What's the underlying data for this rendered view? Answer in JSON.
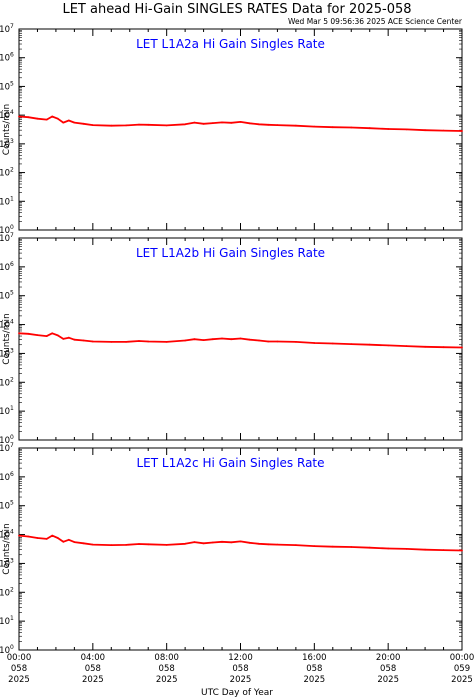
{
  "header": {
    "title": "LET ahead Hi-Gain SINGLES RATES Data for 2025-058",
    "timestamp": "Wed Mar  5 09:56:36 2025 ACE Science Center"
  },
  "colors": {
    "line": "#ff0000",
    "panel_title": "#0000ff",
    "axis": "#000000"
  },
  "chart_data": [
    {
      "type": "line",
      "title": "LET L1A2a Hi Gain Singles Rate",
      "ylabel": "Counts/min",
      "yscale": "log",
      "ylim": [
        1,
        10000000
      ],
      "xlim": [
        0,
        24
      ],
      "series": [
        {
          "x": [
            0,
            0.5,
            1,
            1.5,
            1.8,
            2.1,
            2.4,
            2.7,
            3,
            3.5,
            4,
            5,
            5.8,
            6.5,
            7,
            8,
            9,
            9.5,
            10,
            10.5,
            11,
            11.5,
            12,
            12.5,
            13,
            13.5,
            14,
            15,
            16,
            17,
            18,
            19,
            20,
            21,
            22,
            23,
            24
          ],
          "values": [
            9000,
            8500,
            7500,
            7000,
            9000,
            7500,
            5500,
            6500,
            5500,
            5000,
            4500,
            4300,
            4400,
            4700,
            4600,
            4400,
            4800,
            5500,
            5000,
            5300,
            5600,
            5400,
            5800,
            5200,
            4800,
            4600,
            4500,
            4300,
            4000,
            3800,
            3700,
            3500,
            3300,
            3200,
            3000,
            2900,
            2800
          ]
        }
      ]
    },
    {
      "type": "line",
      "title": "LET L1A2b Hi Gain Singles Rate",
      "ylabel": "Counts/min",
      "yscale": "log",
      "ylim": [
        1,
        10000000
      ],
      "xlim": [
        0,
        24
      ],
      "series": [
        {
          "x": [
            0,
            0.5,
            1,
            1.5,
            1.8,
            2.1,
            2.4,
            2.7,
            3,
            3.5,
            4,
            5,
            5.8,
            6.5,
            7,
            8,
            9,
            9.5,
            10,
            10.5,
            11,
            11.5,
            12,
            12.5,
            13,
            13.5,
            14,
            15,
            16,
            17,
            18,
            19,
            20,
            21,
            22,
            23,
            24
          ],
          "values": [
            5000,
            4800,
            4300,
            4000,
            5000,
            4200,
            3200,
            3500,
            3000,
            2800,
            2600,
            2500,
            2500,
            2700,
            2600,
            2500,
            2800,
            3100,
            2900,
            3100,
            3300,
            3100,
            3300,
            3000,
            2800,
            2600,
            2600,
            2500,
            2300,
            2200,
            2100,
            2000,
            1900,
            1800,
            1700,
            1650,
            1600
          ]
        }
      ]
    },
    {
      "type": "line",
      "title": "LET L1A2c Hi Gain Singles Rate",
      "ylabel": "Counts/min",
      "yscale": "log",
      "ylim": [
        1,
        10000000
      ],
      "xlim": [
        0,
        24
      ],
      "series": [
        {
          "x": [
            0,
            0.5,
            1,
            1.5,
            1.8,
            2.1,
            2.4,
            2.7,
            3,
            3.5,
            4,
            5,
            5.8,
            6.5,
            7,
            8,
            9,
            9.5,
            10,
            10.5,
            11,
            11.5,
            12,
            12.5,
            13,
            13.5,
            14,
            15,
            16,
            17,
            18,
            19,
            20,
            21,
            22,
            23,
            24
          ],
          "values": [
            9200,
            8600,
            7600,
            7100,
            9200,
            7600,
            5600,
            6600,
            5500,
            5000,
            4500,
            4300,
            4400,
            4700,
            4600,
            4400,
            4800,
            5500,
            5000,
            5300,
            5600,
            5400,
            5800,
            5200,
            4800,
            4600,
            4500,
            4300,
            4000,
            3800,
            3700,
            3500,
            3300,
            3200,
            3000,
            2900,
            2800
          ]
        }
      ]
    }
  ],
  "y_ticks": [
    {
      "base": "10",
      "exp": "0"
    },
    {
      "base": "10",
      "exp": "1"
    },
    {
      "base": "10",
      "exp": "2"
    },
    {
      "base": "10",
      "exp": "3"
    },
    {
      "base": "10",
      "exp": "4"
    },
    {
      "base": "10",
      "exp": "5"
    },
    {
      "base": "10",
      "exp": "6"
    },
    {
      "base": "10",
      "exp": "7"
    }
  ],
  "x_ticks": [
    {
      "value": 0,
      "lines": [
        "00:00",
        "058",
        "2025"
      ]
    },
    {
      "value": 4,
      "lines": [
        "04:00",
        "058",
        "2025"
      ]
    },
    {
      "value": 8,
      "lines": [
        "08:00",
        "058",
        "2025"
      ]
    },
    {
      "value": 12,
      "lines": [
        "12:00",
        "058",
        "2025"
      ]
    },
    {
      "value": 16,
      "lines": [
        "16:00",
        "058",
        "2025"
      ]
    },
    {
      "value": 20,
      "lines": [
        "20:00",
        "058",
        "2025"
      ]
    },
    {
      "value": 24,
      "lines": [
        "00:00",
        "059",
        "2025"
      ]
    }
  ],
  "x_axis_label": "UTC Day of Year"
}
